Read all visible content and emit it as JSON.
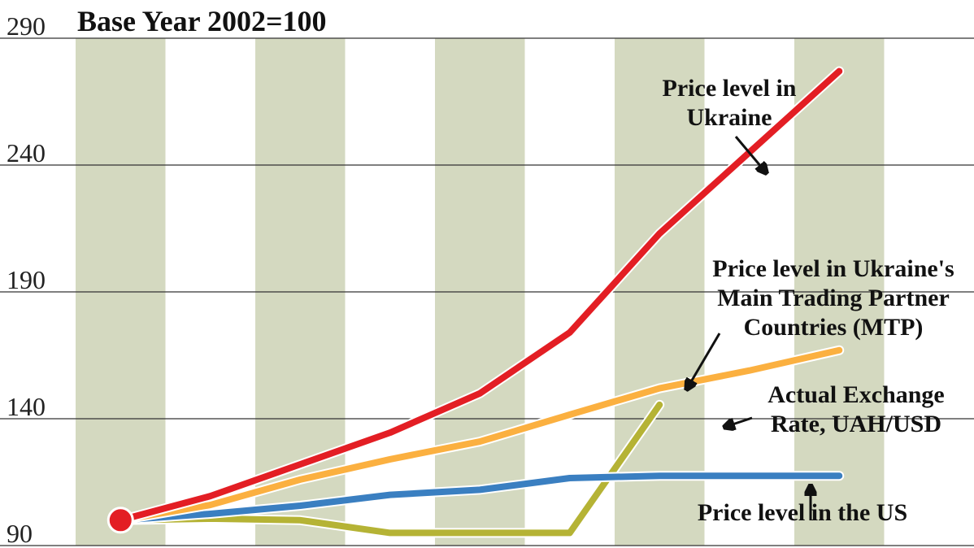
{
  "chart_data": {
    "type": "line",
    "title": "Base Year 2002=100",
    "categories": [
      null,
      null,
      null,
      null,
      null,
      null,
      null,
      null,
      null
    ],
    "series": [
      {
        "color": "#e31e24",
        "values": [
          100,
          109.5,
          122,
          134.5,
          150,
          174,
          213,
          245,
          277
        ]
      },
      {
        "color": "#fbb040",
        "values": [
          100,
          106,
          116,
          124,
          131,
          141.6,
          152,
          159,
          167
        ]
      },
      {
        "color": "#3a7fc1",
        "values": [
          100,
          102.5,
          105.7,
          110,
          112,
          116.6,
          117.5,
          117.5,
          117.5
        ]
      },
      {
        "color": "#b5b335",
        "values": [
          100,
          100.6,
          100,
          95,
          95,
          95,
          145.5,
          null,
          null
        ]
      }
    ],
    "annotations": [
      {
        "lines": [
          "Price level in",
          "Ukraine"
        ]
      },
      {
        "lines": [
          "Price level in Ukraine's",
          "Main Trading Partner",
          "Countries (MTP)"
        ]
      },
      {
        "lines": [
          "Actual Exchange",
          "Rate, UAH/USD"
        ]
      },
      {
        "lines": [
          "Price level in the US"
        ]
      }
    ],
    "ylim": [
      90,
      290
    ],
    "yticks": [
      90,
      140,
      190,
      240,
      290
    ],
    "grid": true,
    "band_color": "#d4d9c0"
  }
}
